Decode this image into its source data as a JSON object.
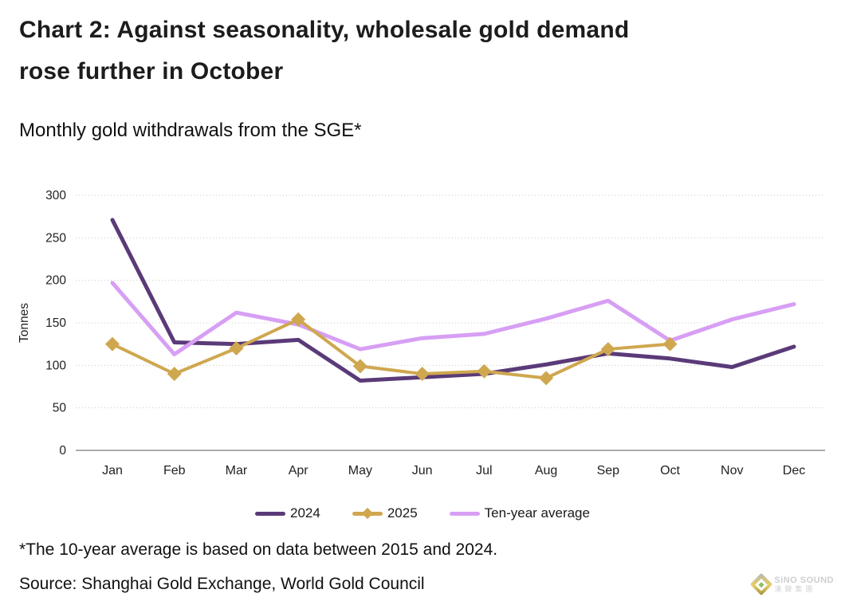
{
  "header": {
    "title_line1": "Chart 2: Against seasonality, wholesale gold demand",
    "title_line2": "rose further in October",
    "subtitle": "Monthly gold withdrawals from the SGE*"
  },
  "chart_data": {
    "type": "line",
    "title": "Monthly gold withdrawals from the SGE*",
    "xlabel": "",
    "ylabel": "Tonnes",
    "ylim": [
      0,
      300
    ],
    "yticks": [
      0,
      50,
      100,
      150,
      200,
      250,
      300
    ],
    "grid": "horizontal-dotted",
    "legend_position": "bottom-center",
    "categories": [
      "Jan",
      "Feb",
      "Mar",
      "Apr",
      "May",
      "Jun",
      "Jul",
      "Aug",
      "Sep",
      "Oct",
      "Nov",
      "Dec"
    ],
    "series": [
      {
        "name": "2024",
        "color": "#5A3A78",
        "marker": "none",
        "line_width": 5,
        "values": [
          271,
          127,
          125,
          130,
          82,
          86,
          90,
          101,
          114,
          108,
          98,
          122
        ]
      },
      {
        "name": "2025",
        "color": "#CFA74F",
        "marker": "diamond",
        "line_width": 4,
        "values": [
          125,
          90,
          120,
          154,
          99,
          90,
          93,
          85,
          119,
          125
        ]
      },
      {
        "name": "Ten-year average",
        "color": "#D79FF4",
        "marker": "none",
        "line_width": 5,
        "values": [
          197,
          113,
          162,
          148,
          119,
          132,
          137,
          155,
          176,
          129,
          154,
          172
        ]
      }
    ],
    "z_order": [
      0,
      2,
      1
    ]
  },
  "footer": {
    "footnote": "*The 10-year average is based on data between 2015 and 2024.",
    "source": "Source: Shanghai Gold Exchange, World Gold Council"
  },
  "logo": {
    "name": "SiNO SOUND",
    "subtext": "漢聲集團"
  },
  "style_colors": {
    "grid": "#c8c8c8",
    "axis": "#8f8f8f",
    "tick_text": "#222222"
  }
}
